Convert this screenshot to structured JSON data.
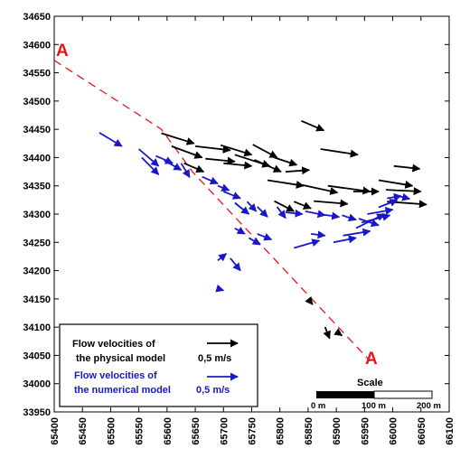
{
  "chart_data": {
    "type": "vector-field",
    "title": "",
    "xlabel": "",
    "ylabel": "",
    "xlim": [
      65400,
      66100
    ],
    "ylim": [
      33950,
      34650
    ],
    "x_ticks": [
      "65400",
      "65450",
      "65500",
      "65550",
      "65600",
      "65650",
      "65700",
      "65750",
      "65800",
      "65850",
      "65900",
      "65950",
      "66000",
      "66050",
      "66100"
    ],
    "y_ticks": [
      "34650",
      "34600",
      "34550",
      "34500",
      "34450",
      "34400",
      "34350",
      "34300",
      "34250",
      "34200",
      "34150",
      "34100",
      "34050",
      "34000",
      "33950"
    ],
    "section_line": {
      "label_start": "A",
      "label_end": "A",
      "points": [
        [
          65400,
          34572
        ],
        [
          65590,
          34450
        ],
        [
          65645,
          34375
        ],
        [
          65960,
          34040
        ]
      ],
      "color": "#e8141c"
    },
    "series": [
      {
        "name": "physical",
        "color": "#000000",
        "vectors": [
          [
            65590,
            34443,
            65648,
            34425
          ],
          [
            65608,
            34420,
            65662,
            34400
          ],
          [
            65630,
            34390,
            65665,
            34375
          ],
          [
            65650,
            34420,
            65712,
            34413
          ],
          [
            65668,
            34398,
            65720,
            34393
          ],
          [
            65695,
            34422,
            65750,
            34405
          ],
          [
            65700,
            34390,
            65750,
            34385
          ],
          [
            65752,
            34423,
            65795,
            34400
          ],
          [
            65720,
            34405,
            65782,
            34385
          ],
          [
            65755,
            34396,
            65802,
            34375
          ],
          [
            65790,
            34400,
            65830,
            34387
          ],
          [
            65810,
            34375,
            65852,
            34378
          ],
          [
            65838,
            34465,
            65878,
            34448
          ],
          [
            65872,
            34415,
            65938,
            34405
          ],
          [
            65778,
            34360,
            65842,
            34350
          ],
          [
            65832,
            34353,
            65902,
            34338
          ],
          [
            65885,
            34350,
            65960,
            34340
          ],
          [
            65930,
            34340,
            65975,
            34340
          ],
          [
            66002,
            34385,
            66048,
            34380
          ],
          [
            65975,
            34360,
            66035,
            34350
          ],
          [
            65988,
            34343,
            66050,
            34340
          ],
          [
            65790,
            34323,
            65825,
            34305
          ],
          [
            65825,
            34322,
            65855,
            34310
          ],
          [
            65860,
            34323,
            65920,
            34318
          ],
          [
            65990,
            34322,
            66060,
            34317
          ],
          [
            65850,
            34150,
            65858,
            34140
          ],
          [
            65880,
            34100,
            65888,
            34080
          ],
          [
            65900,
            34092,
            65910,
            34085
          ]
        ]
      },
      {
        "name": "numerical",
        "color": "#1818c8",
        "vectors": [
          [
            65480,
            34444,
            65520,
            34420
          ],
          [
            65550,
            34415,
            65585,
            34385
          ],
          [
            65555,
            34400,
            65585,
            34370
          ],
          [
            65580,
            34403,
            65610,
            34390
          ],
          [
            65595,
            34395,
            65625,
            34378
          ],
          [
            65625,
            34390,
            65640,
            34365
          ],
          [
            65662,
            34366,
            65690,
            34354
          ],
          [
            65690,
            34350,
            65710,
            34342
          ],
          [
            65700,
            34340,
            65730,
            34328
          ],
          [
            65720,
            34320,
            65745,
            34300
          ],
          [
            65742,
            34322,
            65758,
            34305
          ],
          [
            65760,
            34313,
            65778,
            34295
          ],
          [
            65795,
            34313,
            65810,
            34293
          ],
          [
            65810,
            34303,
            65840,
            34300
          ],
          [
            65845,
            34305,
            65880,
            34298
          ],
          [
            65870,
            34300,
            65905,
            34295
          ],
          [
            65910,
            34298,
            65935,
            34290
          ],
          [
            65940,
            34292,
            65975,
            34280
          ],
          [
            65955,
            34300,
            66000,
            34308
          ],
          [
            65975,
            34312,
            66008,
            34325
          ],
          [
            65990,
            34328,
            66015,
            34332
          ],
          [
            66010,
            34332,
            66030,
            34327
          ],
          [
            65720,
            34275,
            65738,
            34265
          ],
          [
            65745,
            34258,
            65765,
            34246
          ],
          [
            65760,
            34265,
            65785,
            34255
          ],
          [
            65825,
            34240,
            65870,
            34253
          ],
          [
            65855,
            34265,
            65880,
            34262
          ],
          [
            65895,
            34250,
            65935,
            34258
          ],
          [
            65912,
            34262,
            65960,
            34270
          ],
          [
            65935,
            34275,
            65985,
            34300
          ],
          [
            65945,
            34285,
            65995,
            34298
          ],
          [
            65690,
            34218,
            65705,
            34230
          ],
          [
            65712,
            34222,
            65730,
            34200
          ],
          [
            65690,
            34168,
            65700,
            34165
          ]
        ]
      }
    ],
    "legend": {
      "placement": "bottom-left",
      "entries": [
        {
          "line1": "Flow velocities of",
          "line2": "the physical model",
          "value": "0,5 m/s",
          "color": "#000000"
        },
        {
          "line1": "Flow velocities of",
          "line2": "the numerical model",
          "value": "0,5 m/s",
          "color": "#1818c8"
        }
      ]
    },
    "scale_bar": {
      "title": "Scale",
      "labels": [
        "0 m",
        "100 m",
        "200 m"
      ],
      "length_m": 200
    }
  }
}
